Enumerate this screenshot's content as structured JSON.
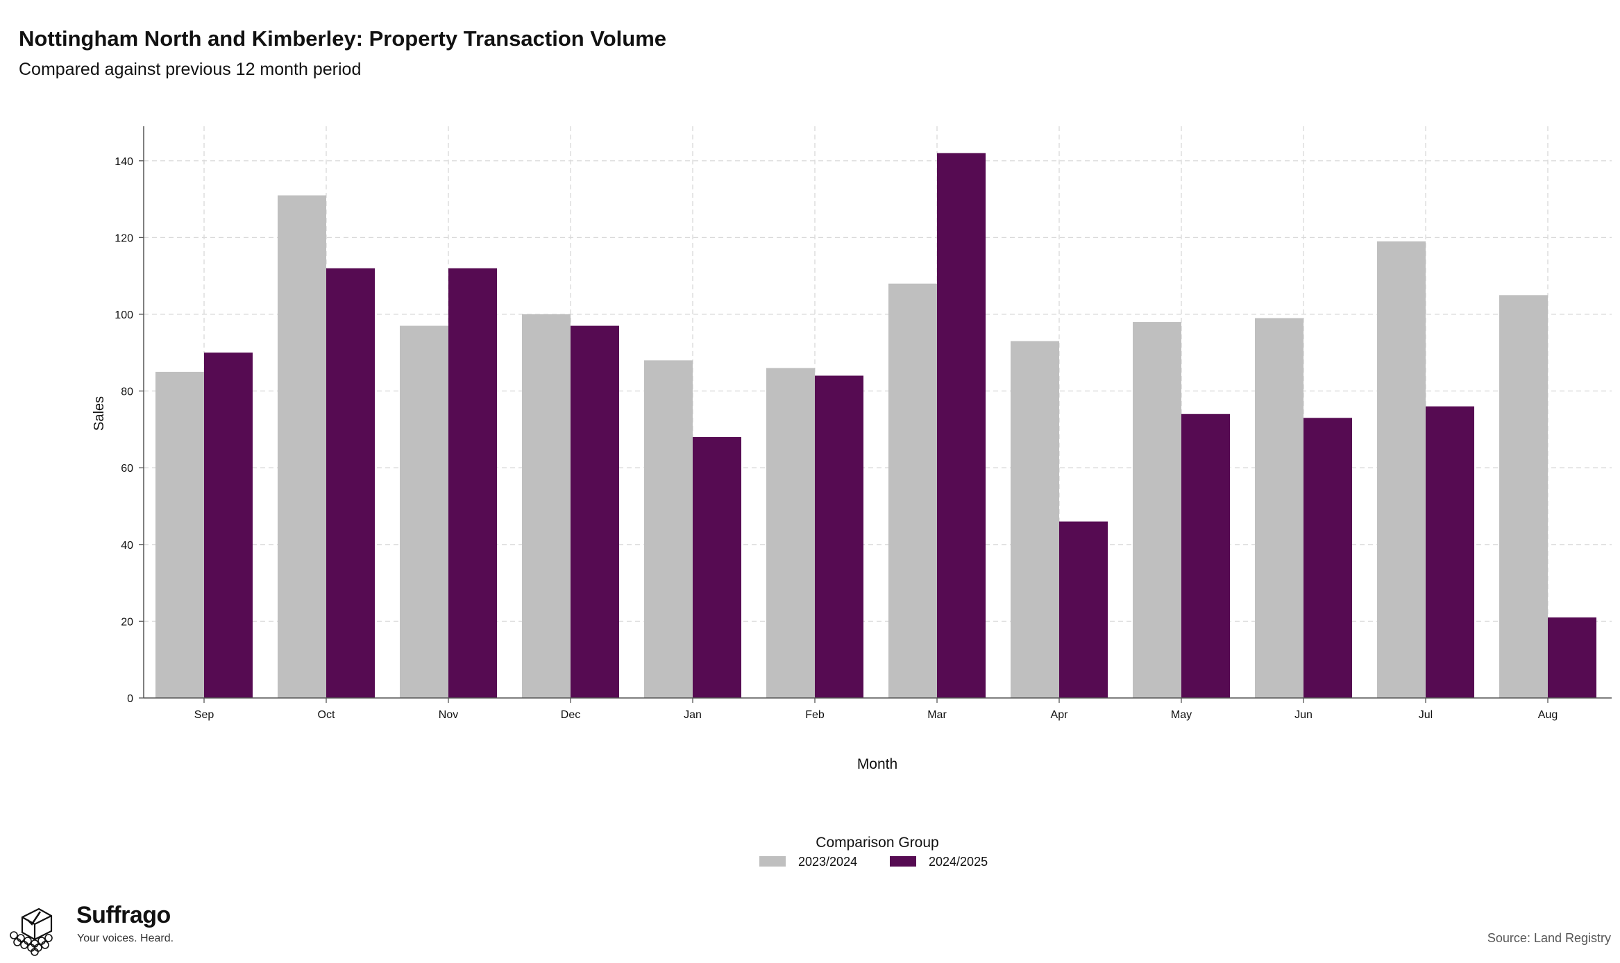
{
  "header": {
    "title": "Nottingham North and Kimberley: Property Transaction Volume",
    "subtitle": "Compared against previous 12 month period"
  },
  "chart_data": {
    "type": "bar",
    "title": "Nottingham North and Kimberley: Property Transaction Volume",
    "subtitle": "Compared against previous 12 month period",
    "xlabel": "Month",
    "ylabel": "Sales",
    "categories": [
      "Sep",
      "Oct",
      "Nov",
      "Dec",
      "Jan",
      "Feb",
      "Mar",
      "Apr",
      "May",
      "Jun",
      "Jul",
      "Aug"
    ],
    "series": [
      {
        "name": "2023/2024",
        "color": "#bfbfbf",
        "values": [
          85,
          131,
          97,
          100,
          88,
          86,
          108,
          93,
          98,
          99,
          119,
          105
        ]
      },
      {
        "name": "2024/2025",
        "color": "#560b52",
        "values": [
          90,
          112,
          112,
          97,
          68,
          84,
          142,
          46,
          74,
          73,
          76,
          21
        ]
      }
    ],
    "ylim": [
      0,
      149
    ],
    "yticks": [
      0,
      20,
      40,
      60,
      80,
      100,
      120,
      140
    ],
    "grid": true,
    "legend": {
      "title": "Comparison Group",
      "placement": "bottom"
    }
  },
  "branding": {
    "name": "Suffrago",
    "tagline": "Your voices. Heard."
  },
  "footer": {
    "source": "Source: Land Registry"
  }
}
